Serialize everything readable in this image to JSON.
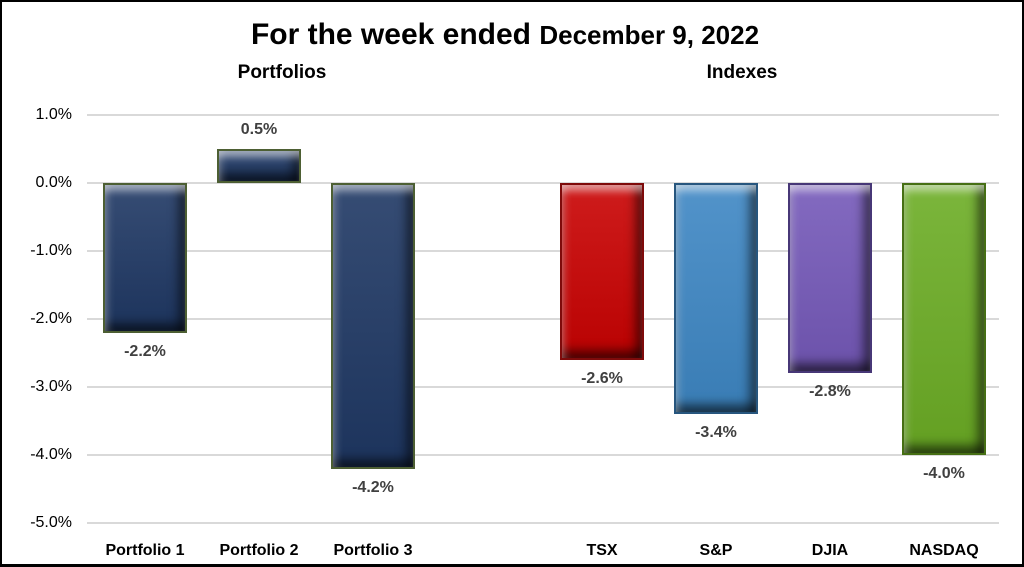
{
  "title": {
    "main": "For the week ended ",
    "date": "December 9, 2022"
  },
  "group_labels": {
    "left": "Portfolios",
    "right": "Indexes"
  },
  "chart_data": {
    "type": "bar",
    "title": "For the week ended December 9, 2022",
    "categories": [
      "Portfolio 1",
      "Portfolio 2",
      "Portfolio 3",
      "TSX",
      "S&P",
      "DJIA",
      "NASDAQ"
    ],
    "values": [
      -2.2,
      0.5,
      -4.2,
      -2.6,
      -3.4,
      -2.8,
      -4.0
    ],
    "labels": [
      "-2.2%",
      "0.5%",
      "-4.2%",
      "-2.6%",
      "-3.4%",
      "-2.8%",
      "-4.0%"
    ],
    "groups": [
      "Portfolios",
      "Portfolios",
      "Portfolios",
      "Indexes",
      "Indexes",
      "Indexes",
      "Indexes"
    ],
    "color_keys": [
      "navy",
      "navy",
      "navy",
      "red",
      "blue",
      "purple",
      "green"
    ],
    "yticks": [
      "1.0%",
      "0.0%",
      "-1.0%",
      "-2.0%",
      "-3.0%",
      "-4.0%",
      "-5.0%"
    ],
    "ylim": [
      -5.0,
      1.0
    ],
    "xlabel": "",
    "ylabel": "",
    "grid": true,
    "legend": false
  },
  "colors": {
    "gridline": "#d9d9d9",
    "value_label": "#404040",
    "axis_text": "#000000",
    "bars": {
      "navy": {
        "fill": "#1f3864",
        "border": "#4d5f33"
      },
      "red": {
        "fill": "#c90202",
        "border": "#7e0a0a"
      },
      "blue": {
        "fill": "#3e87c4",
        "border": "#27567e"
      },
      "purple": {
        "fill": "#7559b9",
        "border": "#473777"
      },
      "green": {
        "fill": "#6cad25",
        "border": "#466f14"
      }
    }
  }
}
